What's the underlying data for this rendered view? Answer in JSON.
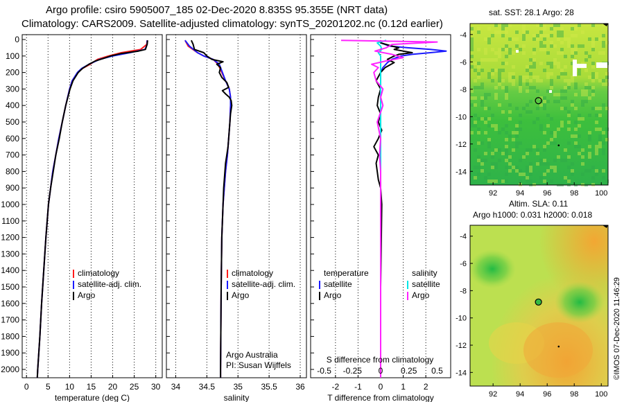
{
  "title_line1": "Argo profile: csiro 5905007_185 02-Dec-2020 8.835S 95.355E (NRT data)",
  "title_line2": "Climatology: CARS2009. Satellite-adjusted climatology: synTS_20201202.nc (0.12d earlier)",
  "colors": {
    "climatology": "#ff1a1a",
    "satellite": "#1a1aff",
    "argo": "#000000",
    "satellite_s": "#00e5e5",
    "argo_s": "#ff22ff"
  },
  "depth_ticks": [
    "0",
    "100",
    "200",
    "300",
    "400",
    "500",
    "600",
    "700",
    "800",
    "900",
    "1000",
    "1100",
    "1200",
    "1300",
    "1400",
    "1500",
    "1600",
    "1700",
    "1800",
    "1900",
    "2000"
  ],
  "credit": "©IMOS 07-Dec-2020 11:46:29",
  "chart_data": [
    {
      "type": "line",
      "panel": "temperature",
      "xlabel": "temperature (deg C)",
      "ylabel": "",
      "xlim": [
        -1,
        31.5
      ],
      "ylim": [
        2100,
        0
      ],
      "xticks": [
        "0",
        "5",
        "10",
        "15",
        "20",
        "25",
        "30"
      ],
      "legend": [
        "climatology",
        "satellite-adj. clim.",
        "Argo"
      ],
      "series": [
        {
          "name": "climatology",
          "depth": [
            5,
            30,
            60,
            80,
            100,
            120,
            150,
            175,
            200,
            250,
            300,
            400,
            500,
            600,
            700,
            800,
            900,
            1000,
            1200,
            1400,
            1600,
            1800,
            2000,
            2050
          ],
          "values": [
            28.0,
            27.9,
            26.5,
            22.0,
            19.0,
            16.5,
            14.8,
            13.0,
            11.9,
            10.6,
            10.0,
            9.1,
            8.3,
            7.5,
            6.8,
            6.1,
            5.6,
            5.1,
            4.5,
            4.0,
            3.5,
            3.1,
            2.6,
            2.5
          ]
        },
        {
          "name": "satellite-adj. clim.",
          "depth": [
            5,
            30,
            60,
            80,
            100,
            120,
            150,
            175,
            200,
            250,
            300,
            400,
            500,
            600,
            700,
            800,
            900,
            1000,
            1200,
            1400,
            1600,
            1800,
            2000,
            2050
          ],
          "values": [
            28.0,
            28.0,
            27.5,
            24.0,
            20.0,
            17.0,
            14.5,
            12.8,
            11.8,
            10.6,
            10.0,
            9.1,
            8.3,
            7.5,
            6.8,
            6.1,
            5.6,
            5.1,
            4.5,
            4.0,
            3.5,
            3.1,
            2.6,
            2.5
          ]
        },
        {
          "name": "Argo",
          "depth": [
            5,
            30,
            60,
            70,
            85,
            100,
            115,
            130,
            150,
            175,
            200,
            250,
            300,
            400,
            500,
            600,
            650,
            700,
            800,
            900,
            1000,
            1200,
            1400,
            1600,
            1800,
            2000,
            2050
          ],
          "values": [
            28.1,
            28.0,
            27.6,
            26.0,
            22.0,
            19.5,
            17.8,
            16.0,
            14.5,
            13.0,
            12.0,
            10.8,
            10.1,
            9.1,
            8.3,
            7.6,
            7.2,
            6.8,
            6.2,
            5.6,
            5.1,
            4.5,
            4.0,
            3.5,
            3.1,
            2.6,
            2.5
          ]
        }
      ]
    },
    {
      "type": "line",
      "panel": "salinity",
      "xlabel": "salinity",
      "ylabel": "",
      "xlim": [
        33.85,
        36.1
      ],
      "ylim": [
        2100,
        0
      ],
      "xticks": [
        "34",
        "34.5",
        "35",
        "35.5",
        "36"
      ],
      "legend": [
        "climatology",
        "satellite-adj. clim.",
        "Argo"
      ],
      "annotation": [
        "Argo Australia",
        "PI: Susan Wijffels"
      ],
      "series": [
        {
          "name": "climatology",
          "depth": [
            5,
            40,
            80,
            100,
            120,
            150,
            200,
            250,
            300,
            350,
            400,
            500,
            600,
            700,
            800,
            1000,
            1200,
            1500,
            2000,
            2050
          ],
          "values": [
            34.15,
            34.2,
            34.35,
            34.45,
            34.6,
            34.68,
            34.74,
            34.8,
            34.86,
            34.88,
            34.88,
            34.87,
            34.85,
            34.83,
            34.8,
            34.76,
            34.74,
            34.73,
            34.72,
            34.72
          ]
        },
        {
          "name": "satellite-adj. clim.",
          "depth": [
            5,
            40,
            80,
            100,
            120,
            150,
            200,
            250,
            300,
            350,
            400,
            500,
            600,
            700,
            800,
            1000,
            1200,
            1500,
            2000,
            2050
          ],
          "values": [
            34.15,
            34.22,
            34.35,
            34.45,
            34.6,
            34.7,
            34.75,
            34.8,
            34.86,
            34.88,
            34.88,
            34.87,
            34.85,
            34.83,
            34.8,
            34.76,
            34.74,
            34.73,
            34.72,
            34.72
          ]
        },
        {
          "name": "Argo",
          "depth": [
            5,
            30,
            60,
            80,
            100,
            120,
            135,
            150,
            170,
            200,
            230,
            260,
            290,
            310,
            330,
            350,
            370,
            400,
            450,
            500,
            550,
            600,
            650,
            700,
            750,
            800,
            900,
            1000,
            1200,
            1500,
            2000,
            2050
          ],
          "values": [
            34.25,
            34.28,
            34.3,
            34.45,
            34.5,
            34.58,
            34.76,
            34.66,
            34.72,
            34.7,
            34.74,
            34.82,
            34.85,
            34.75,
            34.8,
            34.86,
            34.89,
            34.9,
            34.88,
            34.87,
            34.86,
            34.85,
            34.84,
            34.82,
            34.8,
            34.79,
            34.77,
            34.76,
            34.74,
            34.73,
            34.72,
            34.72
          ]
        }
      ]
    },
    {
      "type": "line",
      "panel": "difference",
      "xlabel": "T difference from climatology",
      "xlabel2": "S difference from climatology",
      "xlim": [
        -3.1,
        3.1
      ],
      "ylim": [
        2100,
        0
      ],
      "xticks": [
        "-2",
        "-1",
        "0",
        "1",
        "2"
      ],
      "xticks2": [
        "-0.5",
        "-0.25",
        "0",
        "0.25",
        "0.5"
      ],
      "legend_headers": [
        "temperature",
        "salinity"
      ],
      "legend_left": [
        "satellite",
        "Argo"
      ],
      "legend_right": [
        "satellite",
        "Argo"
      ],
      "series": [
        {
          "name": "T satellite",
          "depth": [
            5,
            20,
            40,
            50,
            60,
            70,
            80,
            90,
            100,
            120,
            140,
            170,
            200,
            250,
            300,
            400,
            600,
            800,
            1000,
            1500,
            2050
          ],
          "values": [
            0.0,
            0.0,
            0.4,
            1.2,
            2.2,
            2.9,
            2.2,
            1.4,
            0.9,
            0.5,
            0.3,
            0.1,
            0.0,
            0.0,
            0.0,
            0.0,
            0.0,
            0.0,
            0.0,
            0.0,
            0.0
          ]
        },
        {
          "name": "T Argo",
          "depth": [
            5,
            20,
            40,
            50,
            60,
            70,
            80,
            90,
            100,
            120,
            140,
            170,
            200,
            250,
            300,
            350,
            400,
            450,
            500,
            550,
            600,
            650,
            700,
            750,
            800,
            850,
            900,
            1000,
            1500,
            2050
          ],
          "values": [
            0.0,
            0.0,
            0.5,
            0.8,
            0.6,
            1.0,
            1.4,
            0.8,
            0.6,
            0.3,
            0.6,
            0.2,
            0.0,
            -0.2,
            0.0,
            -0.1,
            -0.15,
            0.0,
            -0.1,
            0.05,
            -0.1,
            -0.3,
            -0.1,
            -0.2,
            -0.15,
            -0.1,
            0.0,
            0.05,
            0.0,
            0.0
          ]
        },
        {
          "name": "S satellite",
          "depth": [
            5,
            20,
            40,
            60,
            80,
            100,
            150,
            200,
            300,
            500,
            1000,
            1500,
            2050
          ],
          "values": [
            0.05,
            -0.03,
            0.0,
            0.01,
            -0.02,
            0.0,
            0.0,
            0.0,
            0.0,
            0.0,
            0.0,
            0.0,
            0.0
          ]
        },
        {
          "name": "S Argo",
          "depth": [
            5,
            15,
            30,
            50,
            70,
            90,
            110,
            130,
            150,
            170,
            200,
            250,
            300,
            350,
            400,
            500,
            600,
            700,
            800,
            1000,
            1500,
            2050
          ],
          "values": [
            -0.35,
            0.5,
            0.1,
            0.05,
            -0.05,
            0.1,
            0.2,
            0.05,
            -0.08,
            -0.02,
            -0.06,
            -0.04,
            0.02,
            0.0,
            0.02,
            -0.03,
            0.0,
            -0.01,
            0.0,
            0.0,
            0.0,
            0.0
          ]
        }
      ]
    },
    {
      "type": "heatmap",
      "panel": "sst_map",
      "title": "sat. SST: 28.1 Argo: 28",
      "xlim": [
        90.3,
        100.5
      ],
      "ylim": [
        -15,
        -3.2
      ],
      "xticks": [
        "92",
        "94",
        "96",
        "98",
        "100"
      ],
      "yticks": [
        "-4",
        "-6",
        "-8",
        "-10",
        "-12",
        "-14"
      ],
      "marker": {
        "lon": 95.355,
        "lat": -8.835
      }
    },
    {
      "type": "heatmap",
      "panel": "sla_map",
      "title": "Altim. SLA: 0.11",
      "subtitle": "Argo h1000: 0.031 h2000: 0.018",
      "xlim": [
        90.3,
        100.5
      ],
      "ylim": [
        -15,
        -3.2
      ],
      "xticks": [
        "92",
        "94",
        "96",
        "98",
        "100"
      ],
      "yticks": [
        "-4",
        "-6",
        "-8",
        "-10",
        "-12",
        "-14"
      ],
      "marker": {
        "lon": 95.355,
        "lat": -8.835
      }
    }
  ]
}
